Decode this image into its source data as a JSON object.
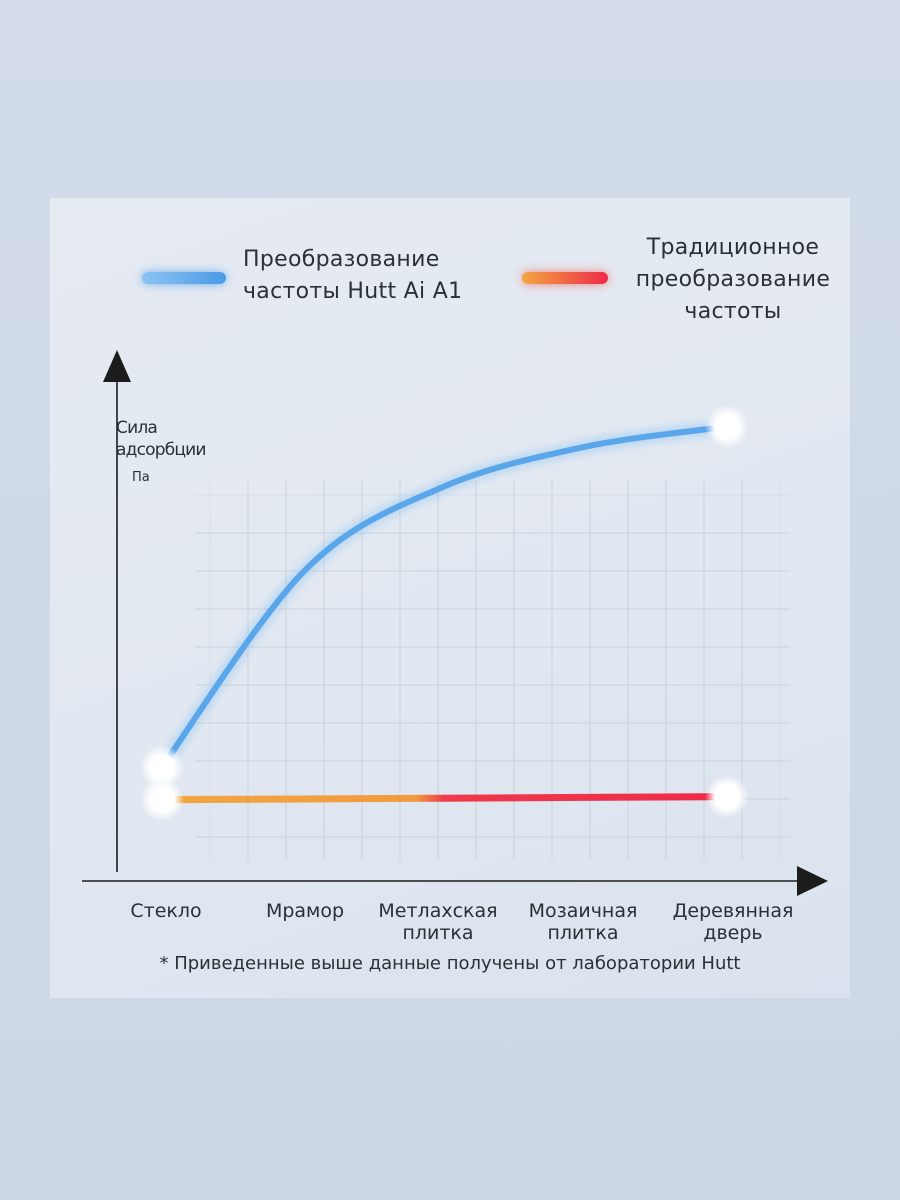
{
  "legend": {
    "hutt": "Преобразование частоты Hutt Ai A1",
    "traditional": "Традиционное преобразование частоты"
  },
  "axes": {
    "ylabel_line1": "Сила",
    "ylabel_line2": "адсорбции",
    "yunit": "Па"
  },
  "footnote": "* Приведенные выше данные получены от лаборатории Hutt",
  "colors": {
    "hutt_line": "#5aa6ea",
    "traditional_start": "#f2a640",
    "traditional_end": "#ee2a4a",
    "axis": "#1c1c1c",
    "grid": "#c3cbd6"
  },
  "chart_data": {
    "type": "line",
    "title": "",
    "xlabel": "",
    "ylabel": "Сила адсорбции Па",
    "categories": [
      "Стекло",
      "Мрамор",
      "Метлахская плитка",
      "Мозаичная плитка",
      "Деревянная дверь"
    ],
    "category_lines": [
      [
        "Стекло"
      ],
      [
        "Мрамор"
      ],
      [
        "Метлахская",
        "плитка"
      ],
      [
        "Мозаичная",
        "плитка"
      ],
      [
        "Деревянная",
        "дверь"
      ]
    ],
    "series": [
      {
        "name": "Преобразование частоты Hutt Ai A1",
        "values": [
          10,
          58,
          78,
          88,
          93
        ]
      },
      {
        "name": "Традиционное преобразование частоты",
        "values": [
          2,
          2,
          2,
          2,
          2
        ]
      }
    ],
    "ylim": [
      0,
      100
    ],
    "grid": true,
    "legend_position": "top",
    "y_ticks_labeled": false
  }
}
